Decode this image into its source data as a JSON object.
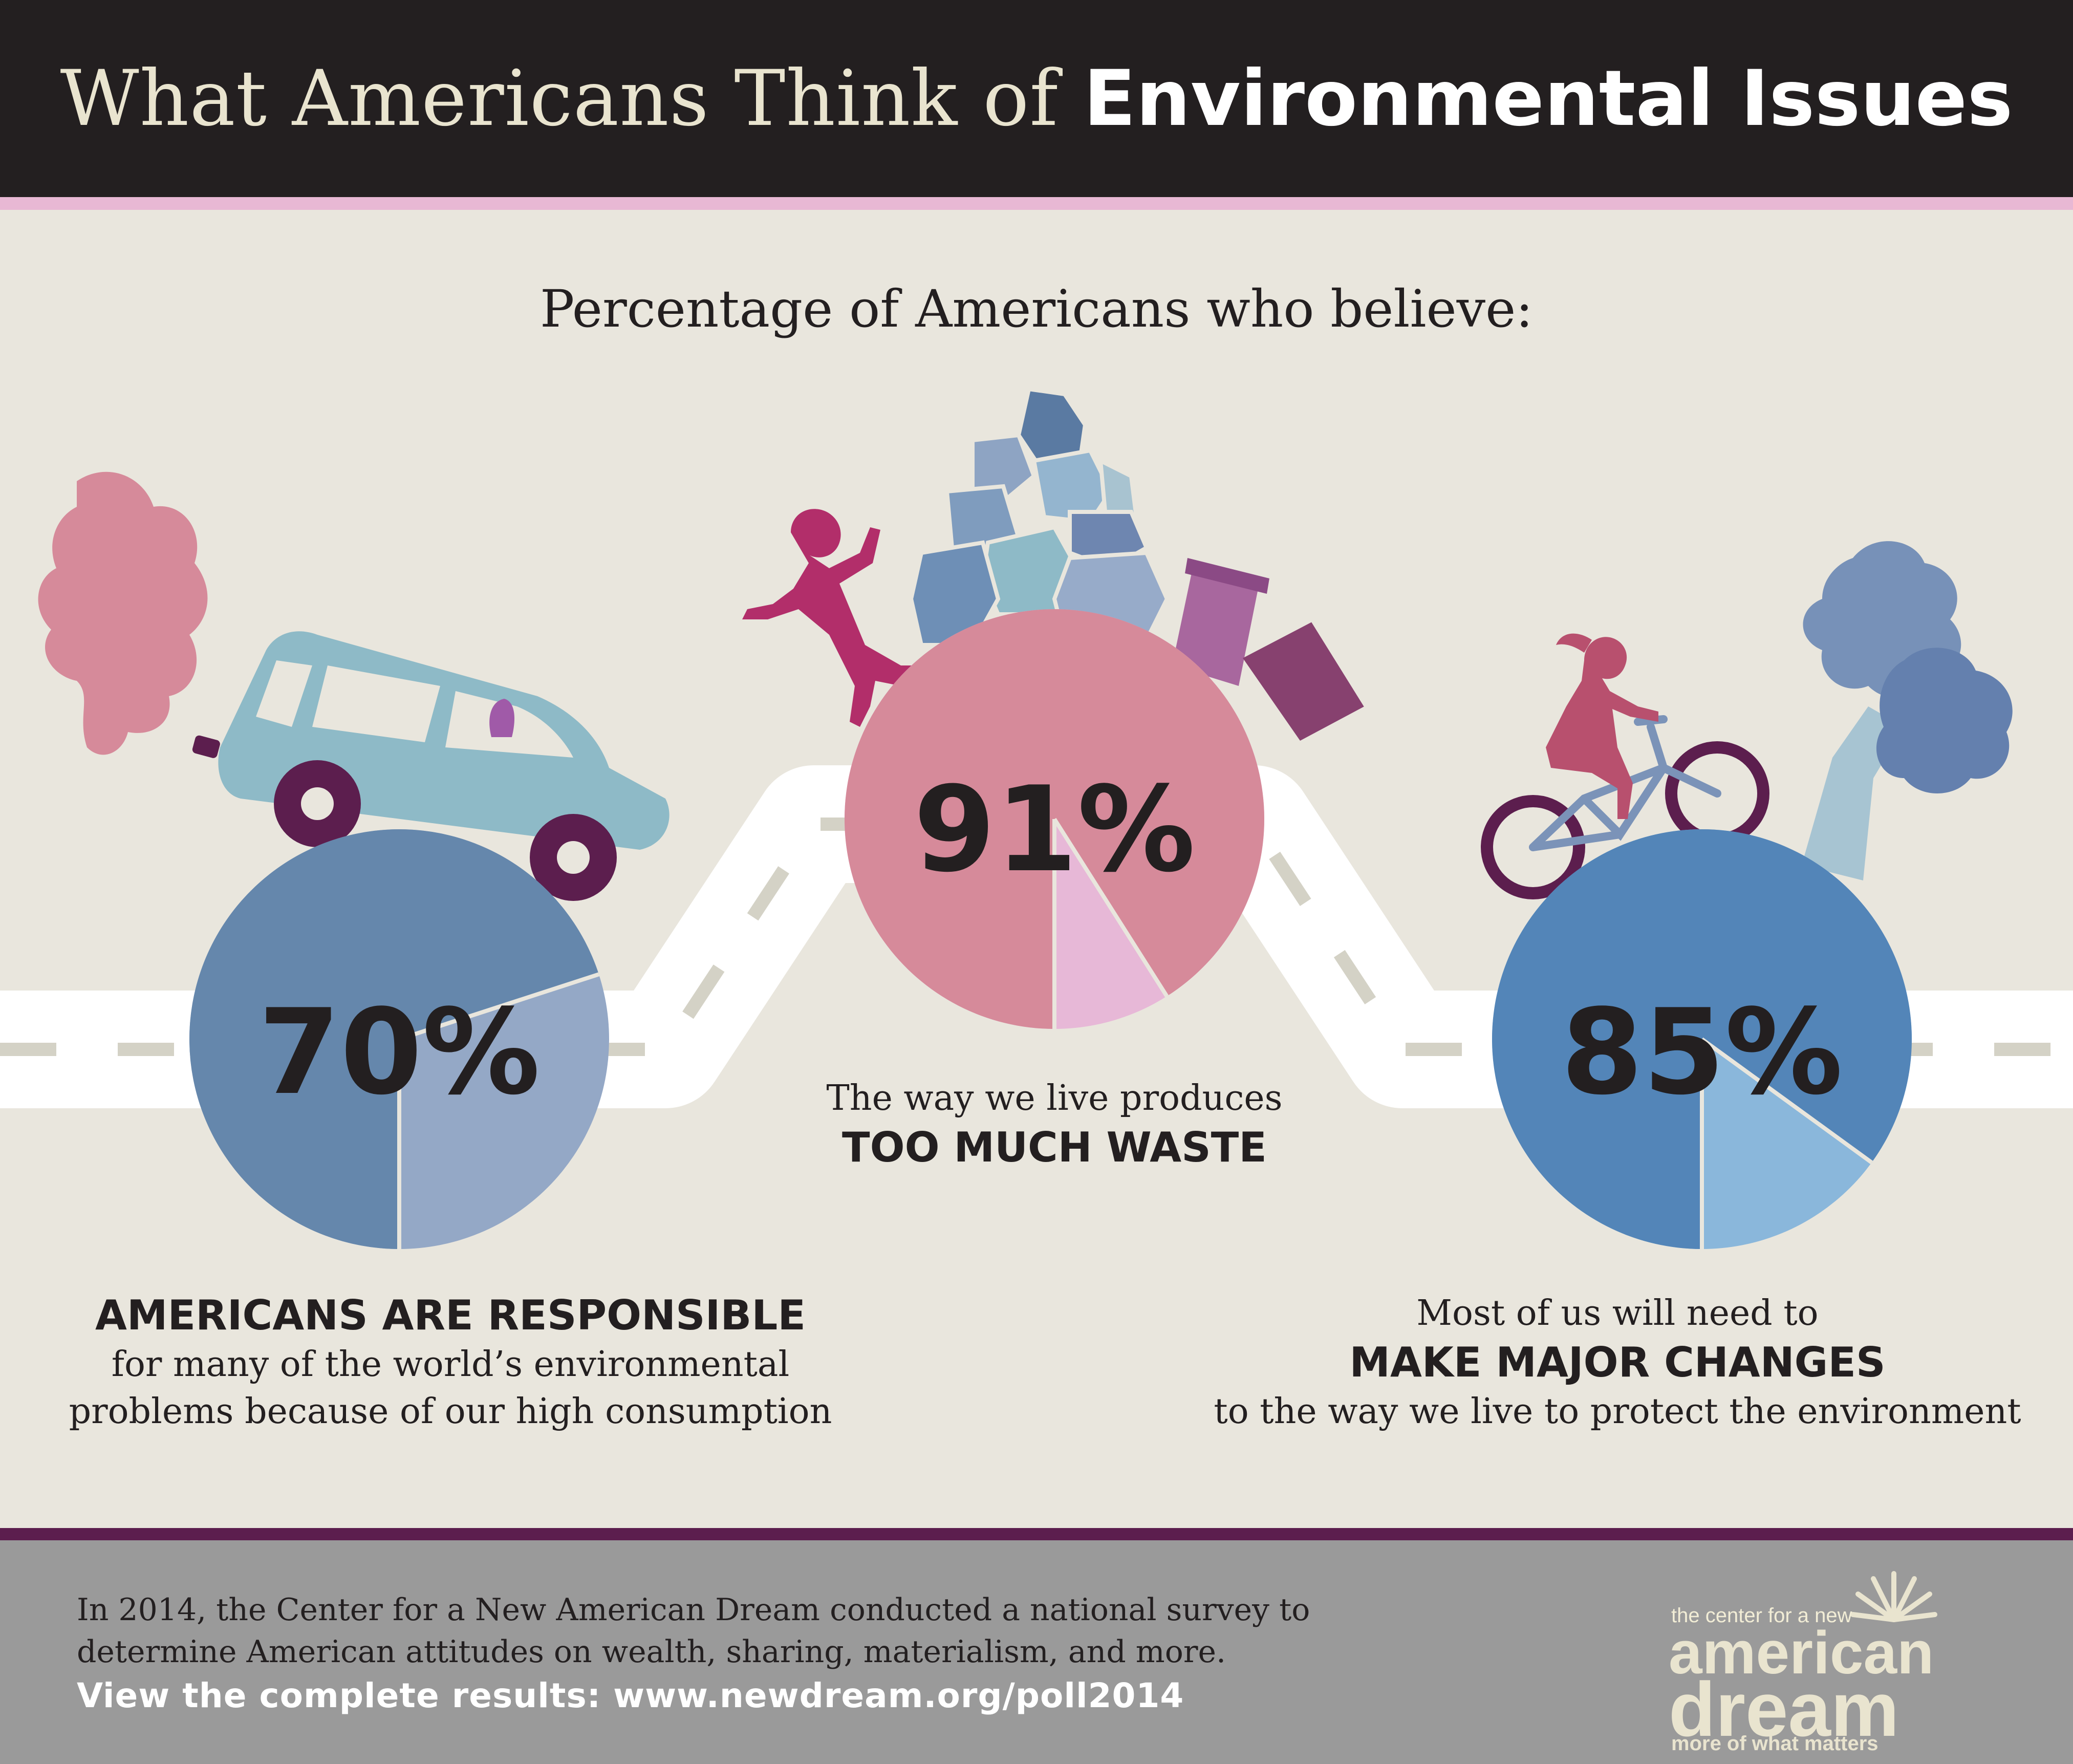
{
  "header": {
    "title_light": "What Americans Think of ",
    "title_bold": "Environmental Issues"
  },
  "subtitle": "Percentage of Americans who believe:",
  "chart_data": {
    "type": "pie",
    "title": "Percentage of Americans who believe:",
    "charts": [
      {
        "value": 70,
        "label": "70%",
        "color_main": "#6587ac",
        "color_rest": "#94a8c6"
      },
      {
        "value": 91,
        "label": "91%",
        "color_main": "#d68a9a",
        "color_rest": "#e7b8d7"
      },
      {
        "value": 85,
        "label": "85%",
        "color_main": "#5385b8",
        "color_rest": "#8ab7db"
      }
    ]
  },
  "captions": {
    "left": {
      "bold": "AMERICANS ARE RESPONSIBLE",
      "line1": "for many of the world’s environmental",
      "line2": "problems because of our high consumption"
    },
    "center": {
      "line1": "The way we live produces",
      "bold": "TOO MUCH WASTE"
    },
    "right": {
      "line1": "Most of us will need to",
      "bold": "MAKE MAJOR CHANGES",
      "line2": "to the way we live to protect the environment"
    }
  },
  "footer": {
    "text": "In 2014, the Center for a New American Dream conducted a national survey to determine American attitudes on wealth, sharing, materialism, and more.",
    "link": "View the complete results: www.newdream.org/poll2014"
  },
  "logo": {
    "small": "the center for a new",
    "american": "american",
    "dream": "dream",
    "tagline": "more of what matters"
  },
  "colors": {
    "header_bg": "#231f20",
    "background": "#e9e6dd",
    "footer_bg": "#9a9a9a",
    "accent_purple": "#5c1e4e",
    "road": "#ffffff"
  }
}
